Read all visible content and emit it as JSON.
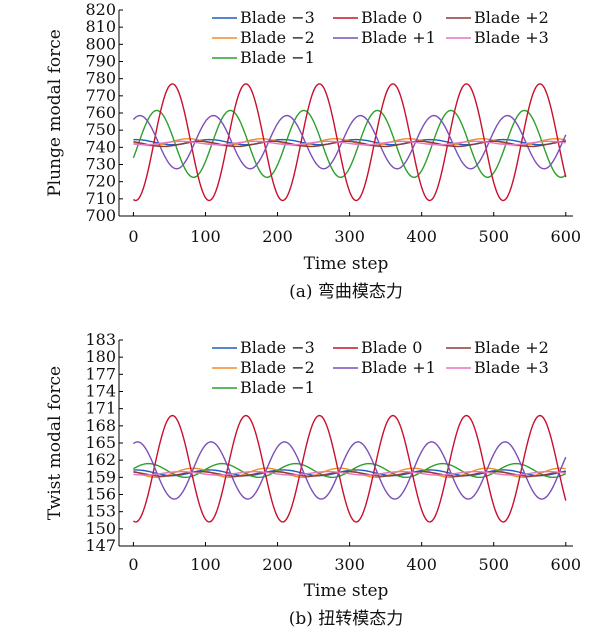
{
  "chart_data": [
    {
      "type": "line",
      "title": "",
      "caption": "(a) 弯曲模态力",
      "xlabel": "Time step",
      "ylabel": "Plunge modal force",
      "xlim": [
        -20,
        610
      ],
      "ylim": [
        700,
        820
      ],
      "xticks": [
        0,
        100,
        200,
        300,
        400,
        500,
        600
      ],
      "yticks": [
        700,
        710,
        720,
        730,
        740,
        750,
        760,
        770,
        780,
        790,
        800,
        810,
        820
      ],
      "legend_position": "top",
      "grid": false,
      "series": [
        {
          "name": "Blade −3",
          "color": "#1f5fbf",
          "mean": 743,
          "amp": 1.5,
          "phase": -0.2
        },
        {
          "name": "Blade −2",
          "color": "#f28c28",
          "mean": 743,
          "amp": 2.0,
          "phase": 1.6
        },
        {
          "name": "Blade −1",
          "color": "#2ca02c",
          "mean": 742,
          "amp": 19.5,
          "phase": -2.0
        },
        {
          "name": "Blade 0",
          "color": "#c8102e",
          "mean": 743,
          "amp": 34.0,
          "phase": 2.95
        },
        {
          "name": "Blade +1",
          "color": "#7b4fb8",
          "mean": 743,
          "amp": 15.5,
          "phase": -0.55
        },
        {
          "name": "Blade +2",
          "color": "#8b3a3a",
          "mean": 742,
          "amp": 1.5,
          "phase": 0.6
        },
        {
          "name": "Blade +3",
          "color": "#e377c2",
          "mean": 742.5,
          "amp": 1.0,
          "phase": 2.2
        }
      ],
      "period": 102,
      "x_range": [
        0,
        600
      ]
    },
    {
      "type": "line",
      "title": "",
      "caption": "(b) 扭转模态力",
      "xlabel": "Time step",
      "ylabel": "Twist modal force",
      "xlim": [
        -20,
        610
      ],
      "ylim": [
        147,
        183
      ],
      "xticks": [
        0,
        100,
        200,
        300,
        400,
        500,
        600
      ],
      "yticks": [
        147,
        150,
        153,
        156,
        159,
        162,
        165,
        168,
        171,
        174,
        177,
        180,
        183
      ],
      "legend_position": "top",
      "grid": false,
      "series": [
        {
          "name": "Blade −3",
          "color": "#1f5fbf",
          "mean": 159.8,
          "amp": 0.5,
          "phase": -0.2
        },
        {
          "name": "Blade −2",
          "color": "#f28c28",
          "mean": 159.8,
          "amp": 0.8,
          "phase": 1.2
        },
        {
          "name": "Blade −1",
          "color": "#2ca02c",
          "mean": 160.2,
          "amp": 1.2,
          "phase": -1.3
        },
        {
          "name": "Blade 0",
          "color": "#c8102e",
          "mean": 160.5,
          "amp": 9.3,
          "phase": 2.95
        },
        {
          "name": "Blade +1",
          "color": "#7b4fb8",
          "mean": 160.2,
          "amp": 5.0,
          "phase": -0.35
        },
        {
          "name": "Blade +2",
          "color": "#8b3a3a",
          "mean": 159.6,
          "amp": 0.4,
          "phase": 0.6
        },
        {
          "name": "Blade +3",
          "color": "#e377c2",
          "mean": 159.7,
          "amp": 0.3,
          "phase": 2.2
        }
      ],
      "period": 102,
      "x_range": [
        0,
        600
      ]
    }
  ]
}
